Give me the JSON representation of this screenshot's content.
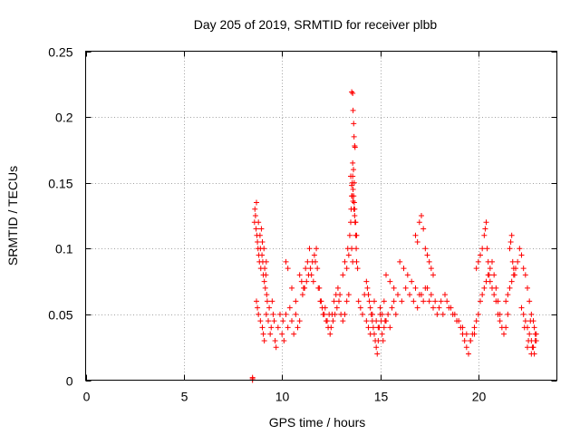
{
  "chart_data": {
    "type": "scatter",
    "title": "Day 205 of 2019, SRMTID for receiver plbb",
    "xlabel": "GPS time / hours",
    "ylabel": "SRMTID / TECUs",
    "xlim": [
      0,
      24
    ],
    "ylim": [
      0,
      0.25
    ],
    "xticks": [
      0,
      5,
      10,
      15,
      20
    ],
    "yticks": [
      0,
      0.05,
      0.1,
      0.15,
      0.2,
      0.25
    ],
    "xtick_labels": [
      "0",
      "5",
      "10",
      "15",
      "20"
    ],
    "ytick_labels": [
      "0",
      "0.05",
      "0.1",
      "0.15",
      "0.2",
      "0.25"
    ],
    "grid": true,
    "marker": "+",
    "color": "#ff0000",
    "series": [
      {
        "name": "SRMTID",
        "x": [
          8.5,
          8.5,
          8.5,
          8.6,
          8.62,
          8.65,
          8.68,
          8.7,
          8.72,
          8.75,
          8.78,
          8.8,
          8.82,
          8.85,
          8.88,
          8.9,
          8.92,
          8.95,
          8.98,
          9.0,
          9.02,
          9.05,
          9.08,
          9.1,
          9.12,
          9.15,
          9.18,
          9.2,
          9.22,
          9.25,
          8.7,
          8.75,
          8.8,
          8.9,
          9.0,
          9.05,
          9.1,
          9.2,
          9.3,
          9.35,
          9.4,
          9.45,
          9.5,
          9.55,
          9.6,
          9.65,
          9.7,
          9.8,
          9.9,
          10.0,
          10.05,
          10.1,
          10.2,
          10.3,
          10.4,
          10.5,
          10.6,
          10.7,
          10.8,
          10.9,
          10.2,
          10.3,
          10.5,
          10.7,
          10.9,
          11.0,
          11.1,
          11.2,
          11.3,
          11.4,
          11.5,
          11.6,
          11.7,
          11.8,
          11.9,
          12.0,
          12.1,
          12.2,
          12.3,
          12.4,
          12.5,
          12.6,
          12.7,
          12.8,
          12.9,
          13.0,
          13.1,
          13.2,
          13.3,
          13.4,
          11.05,
          11.15,
          11.25,
          11.35,
          11.45,
          11.55,
          11.65,
          11.75,
          11.85,
          11.95,
          12.05,
          12.15,
          12.25,
          12.35,
          12.45,
          12.55,
          12.65,
          12.75,
          12.85,
          12.95,
          13.1,
          13.2,
          13.3,
          13.35,
          13.4,
          13.45,
          13.5,
          13.52,
          13.55,
          13.58,
          13.6,
          13.62,
          13.65,
          13.68,
          13.7,
          13.72,
          13.75,
          13.78,
          13.8,
          13.85,
          13.55,
          13.6,
          13.62,
          13.65,
          13.67,
          13.7,
          13.72,
          13.6,
          13.64,
          13.68,
          13.5,
          13.55,
          13.58,
          13.62,
          13.66,
          13.7,
          13.75,
          13.8,
          13.55,
          13.6,
          13.9,
          14.0,
          14.1,
          14.2,
          14.3,
          14.4,
          14.5,
          14.6,
          14.7,
          14.8,
          14.9,
          15.0,
          15.1,
          15.2,
          15.3,
          15.4,
          15.5,
          15.6,
          15.7,
          15.8,
          14.3,
          14.35,
          14.4,
          14.45,
          14.5,
          14.55,
          14.6,
          14.65,
          14.7,
          14.75,
          14.8,
          14.85,
          14.9,
          14.95,
          15.0,
          15.05,
          15.1,
          15.15,
          15.2,
          15.25,
          15.3,
          15.5,
          15.7,
          15.9,
          16.1,
          16.3,
          16.5,
          16.7,
          16.9,
          17.1,
          17.3,
          17.5,
          17.7,
          17.9,
          18.1,
          18.3,
          18.5,
          18.7,
          18.9,
          19.1,
          16.0,
          16.2,
          16.4,
          16.6,
          16.8,
          17.0,
          17.2,
          17.4,
          17.6,
          17.8,
          18.0,
          18.2,
          18.4,
          18.6,
          18.8,
          19.0,
          19.2,
          19.4,
          19.6,
          19.8,
          16.8,
          16.9,
          17.0,
          17.1,
          17.2,
          17.3,
          17.4,
          17.5,
          17.6,
          17.7,
          19.2,
          19.3,
          19.4,
          19.5,
          19.6,
          19.7,
          19.8,
          19.9,
          20.0,
          20.1,
          20.2,
          20.3,
          20.4,
          20.5,
          20.6,
          20.7,
          20.8,
          20.9,
          21.0,
          21.1,
          19.9,
          20.0,
          20.1,
          20.2,
          20.3,
          20.35,
          20.4,
          20.45,
          20.5,
          20.55,
          20.6,
          20.7,
          20.8,
          20.9,
          21.0,
          21.1,
          21.2,
          21.3,
          21.4,
          21.5,
          21.4,
          21.5,
          21.6,
          21.7,
          21.8,
          21.9,
          22.0,
          22.1,
          22.2,
          22.3,
          22.4,
          22.5,
          22.6,
          22.7,
          22.8,
          22.85,
          22.9,
          22.95,
          22.5,
          22.7,
          21.6,
          21.65,
          21.7,
          21.75,
          21.8,
          21.85,
          22.3,
          22.4,
          22.5,
          22.6,
          22.7,
          22.8,
          22.9,
          22.95,
          22.2,
          22.35,
          22.55,
          22.75,
          22.85,
          22.65
        ],
        "y": [
          0.0,
          0.001,
          0.002,
          0.12,
          0.13,
          0.125,
          0.115,
          0.135,
          0.11,
          0.105,
          0.1,
          0.12,
          0.095,
          0.09,
          0.11,
          0.1,
          0.085,
          0.115,
          0.095,
          0.105,
          0.09,
          0.08,
          0.1,
          0.075,
          0.085,
          0.07,
          0.08,
          0.09,
          0.065,
          0.06,
          0.06,
          0.055,
          0.05,
          0.045,
          0.04,
          0.035,
          0.03,
          0.05,
          0.045,
          0.055,
          0.035,
          0.04,
          0.06,
          0.05,
          0.045,
          0.03,
          0.025,
          0.04,
          0.05,
          0.035,
          0.045,
          0.03,
          0.05,
          0.04,
          0.055,
          0.045,
          0.035,
          0.05,
          0.04,
          0.045,
          0.09,
          0.085,
          0.07,
          0.06,
          0.08,
          0.075,
          0.07,
          0.085,
          0.09,
          0.1,
          0.08,
          0.075,
          0.09,
          0.085,
          0.07,
          0.06,
          0.05,
          0.055,
          0.045,
          0.05,
          0.04,
          0.045,
          0.05,
          0.055,
          0.06,
          0.05,
          0.045,
          0.05,
          0.06,
          0.065,
          0.065,
          0.07,
          0.075,
          0.08,
          0.085,
          0.09,
          0.095,
          0.1,
          0.07,
          0.06,
          0.055,
          0.05,
          0.045,
          0.04,
          0.035,
          0.05,
          0.06,
          0.065,
          0.07,
          0.065,
          0.08,
          0.09,
          0.085,
          0.1,
          0.095,
          0.11,
          0.12,
          0.13,
          0.14,
          0.15,
          0.155,
          0.145,
          0.14,
          0.135,
          0.13,
          0.12,
          0.11,
          0.1,
          0.09,
          0.085,
          0.219,
          0.218,
          0.205,
          0.195,
          0.185,
          0.178,
          0.177,
          0.165,
          0.16,
          0.15,
          0.155,
          0.148,
          0.14,
          0.136,
          0.13,
          0.125,
          0.12,
          0.11,
          0.1,
          0.09,
          0.06,
          0.055,
          0.05,
          0.065,
          0.045,
          0.04,
          0.035,
          0.05,
          0.06,
          0.045,
          0.04,
          0.055,
          0.05,
          0.06,
          0.045,
          0.05,
          0.04,
          0.055,
          0.06,
          0.05,
          0.075,
          0.07,
          0.065,
          0.06,
          0.055,
          0.05,
          0.045,
          0.04,
          0.035,
          0.03,
          0.025,
          0.02,
          0.03,
          0.04,
          0.05,
          0.045,
          0.035,
          0.03,
          0.04,
          0.045,
          0.08,
          0.075,
          0.07,
          0.065,
          0.06,
          0.07,
          0.065,
          0.06,
          0.055,
          0.065,
          0.07,
          0.06,
          0.055,
          0.05,
          0.06,
          0.065,
          0.055,
          0.05,
          0.045,
          0.04,
          0.09,
          0.085,
          0.08,
          0.075,
          0.07,
          0.065,
          0.06,
          0.07,
          0.065,
          0.06,
          0.055,
          0.05,
          0.06,
          0.055,
          0.05,
          0.045,
          0.04,
          0.035,
          0.03,
          0.035,
          0.11,
          0.105,
          0.12,
          0.125,
          0.115,
          0.1,
          0.095,
          0.09,
          0.085,
          0.08,
          0.035,
          0.03,
          0.025,
          0.02,
          0.03,
          0.035,
          0.04,
          0.045,
          0.05,
          0.06,
          0.065,
          0.07,
          0.075,
          0.08,
          0.085,
          0.09,
          0.08,
          0.07,
          0.06,
          0.05,
          0.085,
          0.09,
          0.095,
          0.1,
          0.11,
          0.115,
          0.12,
          0.1,
          0.09,
          0.08,
          0.075,
          0.07,
          0.065,
          0.06,
          0.05,
          0.045,
          0.04,
          0.035,
          0.04,
          0.05,
          0.06,
          0.065,
          0.07,
          0.075,
          0.08,
          0.085,
          0.09,
          0.1,
          0.095,
          0.085,
          0.08,
          0.07,
          0.06,
          0.05,
          0.045,
          0.04,
          0.035,
          0.03,
          0.025,
          0.02,
          0.1,
          0.105,
          0.11,
          0.09,
          0.085,
          0.08,
          0.05,
          0.045,
          0.04,
          0.035,
          0.03,
          0.025,
          0.03,
          0.035,
          0.055,
          0.04,
          0.03,
          0.025,
          0.02,
          0.045
        ]
      }
    ]
  }
}
